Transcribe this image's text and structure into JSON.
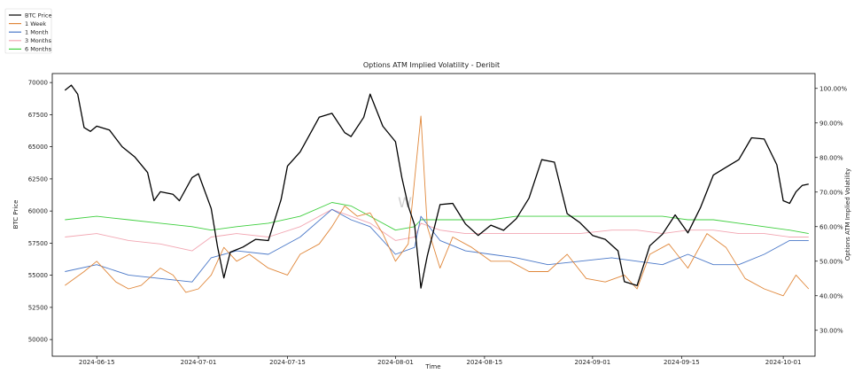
{
  "chart_data": {
    "type": "line",
    "title": "Options ATM Implied Volatility - Deribit",
    "xlabel": "Time",
    "ylabel_left": "BTC Price",
    "ylabel_right": "Options ATM Implied Volatility",
    "x_range": [
      "2024-06-08",
      "2024-10-06"
    ],
    "x_ticks": [
      "2024-06-15",
      "2024-07-01",
      "2024-07-15",
      "2024-08-01",
      "2024-08-15",
      "2024-09-01",
      "2024-09-15",
      "2024-10-01"
    ],
    "ylim_left": [
      48700,
      70700
    ],
    "ylim_right": [
      22.5,
      104.3
    ],
    "y_ticks_left": [
      "50000",
      "52500",
      "55000",
      "57500",
      "60000",
      "62500",
      "65000",
      "67500",
      "70000"
    ],
    "y_ticks_right": [
      "30.00%",
      "40.00%",
      "50.00%",
      "60.00%",
      "70.00%",
      "80.00%",
      "90.00%",
      "100.00%"
    ],
    "grid": false,
    "legend_position": "top-left, outside plot",
    "watermark": "W",
    "series": [
      {
        "name": "BTC Price",
        "axis": "left",
        "color": "#000000",
        "x": [
          "2024-06-10",
          "2024-06-11",
          "2024-06-12",
          "2024-06-13",
          "2024-06-14",
          "2024-06-15",
          "2024-06-17",
          "2024-06-19",
          "2024-06-21",
          "2024-06-23",
          "2024-06-24",
          "2024-06-25",
          "2024-06-27",
          "2024-06-28",
          "2024-06-30",
          "2024-07-01",
          "2024-07-03",
          "2024-07-04",
          "2024-07-05",
          "2024-07-06",
          "2024-07-08",
          "2024-07-10",
          "2024-07-12",
          "2024-07-14",
          "2024-07-15",
          "2024-07-17",
          "2024-07-19",
          "2024-07-20",
          "2024-07-22",
          "2024-07-24",
          "2024-07-25",
          "2024-07-27",
          "2024-07-28",
          "2024-07-30",
          "2024-08-01",
          "2024-08-02",
          "2024-08-03",
          "2024-08-04",
          "2024-08-05",
          "2024-08-06",
          "2024-08-08",
          "2024-08-10",
          "2024-08-12",
          "2024-08-14",
          "2024-08-16",
          "2024-08-18",
          "2024-08-20",
          "2024-08-22",
          "2024-08-24",
          "2024-08-26",
          "2024-08-28",
          "2024-08-30",
          "2024-09-01",
          "2024-09-03",
          "2024-09-05",
          "2024-09-06",
          "2024-09-08",
          "2024-09-10",
          "2024-09-12",
          "2024-09-14",
          "2024-09-16",
          "2024-09-18",
          "2024-09-20",
          "2024-09-22",
          "2024-09-24",
          "2024-09-26",
          "2024-09-28",
          "2024-09-30",
          "2024-10-01",
          "2024-10-02",
          "2024-10-03",
          "2024-10-04",
          "2024-10-05"
        ],
        "y": [
          69400,
          69800,
          69100,
          66500,
          66200,
          66600,
          66300,
          65000,
          64200,
          63000,
          60800,
          61500,
          61300,
          60800,
          62600,
          62900,
          60200,
          57200,
          54800,
          56800,
          57200,
          57800,
          57700,
          60900,
          63500,
          64600,
          66400,
          67300,
          67600,
          66100,
          65800,
          67300,
          69100,
          66600,
          65400,
          62600,
          60400,
          58900,
          54000,
          56500,
          60500,
          60600,
          59000,
          58100,
          58900,
          58500,
          59400,
          61000,
          64000,
          63800,
          59800,
          59100,
          58100,
          57800,
          56900,
          54500,
          54200,
          57300,
          58200,
          59700,
          58300,
          60300,
          62800,
          63400,
          64000,
          65700,
          65600,
          63600,
          60800,
          60600,
          61500,
          62000,
          62100
        ]
      },
      {
        "name": "1 Week",
        "axis": "right",
        "color": "#e0873a",
        "x": [
          "2024-06-10",
          "2024-06-13",
          "2024-06-15",
          "2024-06-18",
          "2024-06-20",
          "2024-06-22",
          "2024-06-25",
          "2024-06-27",
          "2024-06-29",
          "2024-07-01",
          "2024-07-03",
          "2024-07-05",
          "2024-07-07",
          "2024-07-09",
          "2024-07-12",
          "2024-07-15",
          "2024-07-17",
          "2024-07-20",
          "2024-07-22",
          "2024-07-24",
          "2024-07-26",
          "2024-07-28",
          "2024-07-30",
          "2024-08-01",
          "2024-08-03",
          "2024-08-05",
          "2024-08-06",
          "2024-08-08",
          "2024-08-10",
          "2024-08-13",
          "2024-08-16",
          "2024-08-19",
          "2024-08-22",
          "2024-08-25",
          "2024-08-28",
          "2024-08-31",
          "2024-09-03",
          "2024-09-06",
          "2024-09-08",
          "2024-09-10",
          "2024-09-13",
          "2024-09-16",
          "2024-09-19",
          "2024-09-22",
          "2024-09-25",
          "2024-09-28",
          "2024-10-01",
          "2024-10-03",
          "2024-10-05"
        ],
        "y": [
          43,
          47,
          50,
          44,
          42,
          43,
          48,
          46,
          41,
          42,
          46,
          54,
          50,
          52,
          48,
          46,
          52,
          55,
          60,
          66,
          63,
          64,
          58,
          50,
          55,
          92,
          60,
          48,
          57,
          54,
          50,
          50,
          47,
          47,
          52,
          45,
          44,
          46,
          42,
          52,
          55,
          48,
          58,
          54,
          45,
          42,
          40,
          46,
          42
        ]
      },
      {
        "name": "1 Month",
        "axis": "right",
        "color": "#4a78c8",
        "x": [
          "2024-06-10",
          "2024-06-15",
          "2024-06-20",
          "2024-06-25",
          "2024-06-30",
          "2024-07-03",
          "2024-07-07",
          "2024-07-12",
          "2024-07-17",
          "2024-07-22",
          "2024-07-25",
          "2024-07-28",
          "2024-08-01",
          "2024-08-04",
          "2024-08-05",
          "2024-08-08",
          "2024-08-12",
          "2024-08-16",
          "2024-08-20",
          "2024-08-25",
          "2024-08-30",
          "2024-09-04",
          "2024-09-08",
          "2024-09-12",
          "2024-09-16",
          "2024-09-20",
          "2024-09-24",
          "2024-09-28",
          "2024-10-02",
          "2024-10-05"
        ],
        "y": [
          47,
          49,
          46,
          45,
          44,
          51,
          53,
          52,
          57,
          65,
          62,
          60,
          52,
          54,
          63,
          56,
          53,
          52,
          51,
          49,
          50,
          51,
          50,
          49,
          52,
          49,
          49,
          52,
          56,
          56
        ]
      },
      {
        "name": "3 Months",
        "axis": "right",
        "color": "#f2a6b2",
        "x": [
          "2024-06-10",
          "2024-06-15",
          "2024-06-20",
          "2024-06-25",
          "2024-06-30",
          "2024-07-03",
          "2024-07-07",
          "2024-07-12",
          "2024-07-17",
          "2024-07-22",
          "2024-07-25",
          "2024-07-28",
          "2024-08-01",
          "2024-08-04",
          "2024-08-05",
          "2024-08-08",
          "2024-08-12",
          "2024-08-16",
          "2024-08-20",
          "2024-08-25",
          "2024-08-30",
          "2024-09-04",
          "2024-09-08",
          "2024-09-12",
          "2024-09-16",
          "2024-09-20",
          "2024-09-24",
          "2024-09-28",
          "2024-10-02",
          "2024-10-05"
        ],
        "y": [
          57,
          58,
          56,
          55,
          53,
          57,
          58,
          57,
          60,
          65,
          63,
          61,
          56,
          57,
          61,
          59,
          58,
          58,
          58,
          58,
          58,
          59,
          59,
          58,
          59,
          59,
          58,
          58,
          57,
          57
        ]
      },
      {
        "name": "6 Months",
        "axis": "right",
        "color": "#3fcf3f",
        "x": [
          "2024-06-10",
          "2024-06-15",
          "2024-06-20",
          "2024-06-25",
          "2024-06-30",
          "2024-07-03",
          "2024-07-07",
          "2024-07-12",
          "2024-07-17",
          "2024-07-22",
          "2024-07-25",
          "2024-07-28",
          "2024-08-01",
          "2024-08-04",
          "2024-08-05",
          "2024-08-08",
          "2024-08-12",
          "2024-08-16",
          "2024-08-20",
          "2024-08-25",
          "2024-08-30",
          "2024-09-04",
          "2024-09-08",
          "2024-09-12",
          "2024-09-16",
          "2024-09-20",
          "2024-09-24",
          "2024-09-28",
          "2024-10-02",
          "2024-10-05"
        ],
        "y": [
          62,
          63,
          62,
          61,
          60,
          59,
          60,
          61,
          63,
          67,
          66,
          63,
          59,
          60,
          62,
          62,
          62,
          62,
          63,
          63,
          63,
          63,
          63,
          63,
          62,
          62,
          61,
          60,
          59,
          58
        ]
      }
    ]
  }
}
